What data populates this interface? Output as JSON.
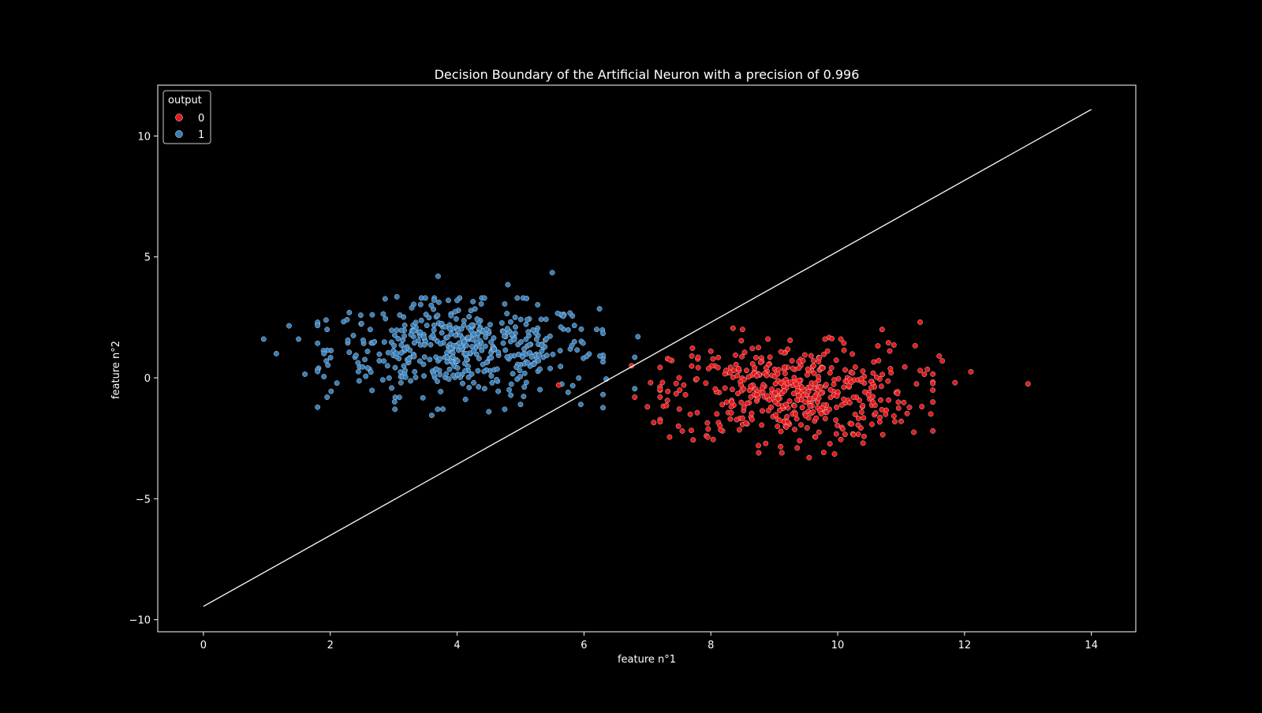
{
  "chart_data": {
    "type": "scatter",
    "title": "Decision Boundary of the Artificial Neuron with a precision of 0.996",
    "xlabel": "feature n°1",
    "ylabel": "feature n°2",
    "xlim": [
      -0.72,
      14.7
    ],
    "ylim": [
      -10.5,
      12.1
    ],
    "x_ticks": [
      0,
      2,
      4,
      6,
      8,
      10,
      12,
      14
    ],
    "y_ticks": [
      -10,
      -5,
      0,
      5,
      10
    ],
    "y_tick_labels": [
      "−10",
      "−5",
      "0",
      "5",
      "10"
    ],
    "grid": false,
    "legend": {
      "title": "output",
      "placement": "upper left",
      "entries": [
        {
          "label": "0",
          "color": "#e41a1c"
        },
        {
          "label": "1",
          "color": "#377eb8"
        }
      ]
    },
    "boundary_line": {
      "color": "#ffffff",
      "x": [
        0,
        14
      ],
      "y": [
        -9.45,
        11.1
      ]
    },
    "series": [
      {
        "name": "0",
        "color": "#e41a1c",
        "center": [
          9.3,
          -0.6
        ],
        "spread": [
          0.95,
          0.95
        ],
        "count": 500,
        "points": [
          [
            13.0,
            -0.25
          ],
          [
            12.1,
            0.25
          ],
          [
            11.85,
            -0.2
          ],
          [
            11.6,
            0.9
          ],
          [
            11.65,
            0.7
          ],
          [
            11.3,
            2.3
          ],
          [
            11.3,
            0.3
          ],
          [
            11.2,
            -2.25
          ],
          [
            11.5,
            -1.0
          ],
          [
            11.0,
            -1.8
          ],
          [
            10.7,
            2.0
          ],
          [
            10.8,
            1.45
          ],
          [
            10.4,
            -2.7
          ],
          [
            10.05,
            1.6
          ],
          [
            9.55,
            -3.3
          ],
          [
            9.95,
            -3.15
          ],
          [
            8.35,
            2.05
          ],
          [
            8.5,
            2.0
          ],
          [
            8.75,
            1.25
          ],
          [
            8.9,
            1.6
          ],
          [
            9.25,
            1.55
          ],
          [
            9.8,
            1.6
          ],
          [
            7.35,
            0.75
          ],
          [
            7.5,
            0.0
          ],
          [
            7.3,
            -1.15
          ],
          [
            7.05,
            -0.2
          ],
          [
            7.0,
            -1.2
          ],
          [
            7.1,
            -1.85
          ],
          [
            7.35,
            -2.45
          ],
          [
            7.55,
            -2.2
          ],
          [
            7.95,
            -2.45
          ],
          [
            8.45,
            -2.15
          ],
          [
            8.75,
            -2.8
          ],
          [
            9.1,
            -2.85
          ],
          [
            9.4,
            -2.6
          ],
          [
            9.65,
            -2.45
          ],
          [
            10.05,
            -2.55
          ],
          [
            10.25,
            -2.35
          ],
          [
            6.8,
            -0.8
          ],
          [
            6.75,
            0.5
          ],
          [
            5.6,
            -0.3
          ],
          [
            7.7,
            0.9
          ],
          [
            7.8,
            0.85
          ],
          [
            8.0,
            1.1
          ],
          [
            7.6,
            -0.7
          ]
        ]
      },
      {
        "name": "1",
        "color": "#377eb8",
        "center": [
          4.1,
          1.2
        ],
        "spread": [
          1.05,
          0.95
        ],
        "count": 500,
        "points": [
          [
            0.95,
            1.6
          ],
          [
            1.15,
            1.0
          ],
          [
            1.35,
            2.15
          ],
          [
            1.5,
            1.6
          ],
          [
            1.6,
            0.15
          ],
          [
            1.9,
            1.0
          ],
          [
            1.95,
            2.0
          ],
          [
            1.95,
            -0.8
          ],
          [
            1.9,
            0.05
          ],
          [
            3.7,
            4.2
          ],
          [
            4.8,
            3.85
          ],
          [
            5.5,
            4.35
          ],
          [
            3.6,
            -1.55
          ],
          [
            4.5,
            -1.4
          ],
          [
            4.75,
            -1.3
          ],
          [
            5.0,
            -1.1
          ],
          [
            5.95,
            -1.1
          ],
          [
            5.75,
            -0.6
          ],
          [
            6.35,
            -0.05
          ],
          [
            6.8,
            0.85
          ],
          [
            6.85,
            1.7
          ],
          [
            6.8,
            -0.45
          ],
          [
            6.25,
            0.9
          ],
          [
            6.2,
            2.0
          ],
          [
            2.3,
            2.7
          ],
          [
            3.05,
            3.35
          ],
          [
            3.5,
            3.3
          ],
          [
            4.0,
            3.2
          ],
          [
            4.25,
            3.15
          ]
        ]
      }
    ]
  }
}
